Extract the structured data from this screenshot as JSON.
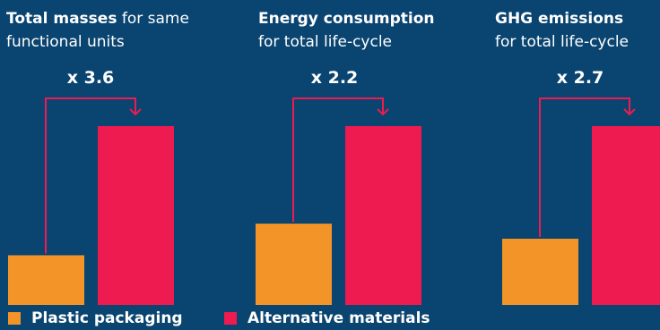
{
  "chart_data": {
    "type": "bar",
    "series": [
      {
        "name": "Plastic packaging",
        "color": "#f39428"
      },
      {
        "name": "Alternative materials",
        "color": "#ed1b50"
      }
    ],
    "panels": [
      {
        "title_bold": "Total masses",
        "title_rest": " for same",
        "title_line2": "functional units",
        "multiplier": "x 3.6",
        "values": [
          1,
          3.6
        ]
      },
      {
        "title_bold": "Energy consumption",
        "title_rest": "",
        "title_line2": "for total life-cycle",
        "multiplier": "x 2.2",
        "values": [
          1,
          2.2
        ]
      },
      {
        "title_bold": "GHG emissions",
        "title_rest": "",
        "title_line2": "for total life-cycle",
        "multiplier": "x 2.7",
        "values": [
          1,
          2.7
        ]
      }
    ],
    "arrow_color": "#ed1b50"
  }
}
